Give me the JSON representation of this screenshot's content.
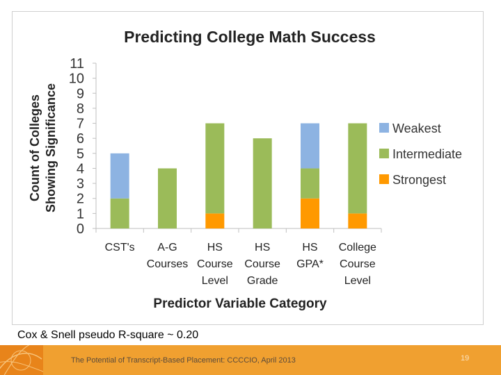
{
  "chart_data": {
    "type": "bar",
    "stacked": true,
    "title": "Predicting College Math Success",
    "xlabel": "Predictor Variable Category",
    "ylabel": [
      "Count of Colleges",
      "Showing Significance"
    ],
    "ylim": [
      0,
      11
    ],
    "yticks": [
      "0",
      "1",
      "2",
      "3",
      "4",
      "5",
      "6",
      "7",
      "8",
      "9",
      "10",
      "11"
    ],
    "grid": false,
    "legend_position": "right",
    "categories": [
      [
        "CST's"
      ],
      [
        "A-G",
        "Courses"
      ],
      [
        "HS",
        "Course",
        "Level"
      ],
      [
        "HS",
        "Course",
        "Grade"
      ],
      [
        "HS",
        "GPA*"
      ],
      [
        "College",
        "Course",
        "Level"
      ]
    ],
    "series": [
      {
        "name": "Strongest",
        "color": "#ff9900",
        "values": [
          0,
          0,
          1,
          0,
          2,
          1
        ]
      },
      {
        "name": "Intermediate",
        "color": "#9bbb59",
        "values": [
          2,
          4,
          6,
          6,
          2,
          6
        ]
      },
      {
        "name": "Weakest",
        "color": "#8db3e2",
        "values": [
          3,
          0,
          0,
          0,
          3,
          0
        ]
      }
    ],
    "legend_order": [
      "Weakest",
      "Intermediate",
      "Strongest"
    ]
  },
  "caption": "Cox & Snell pseudo R-square ~ 0.20",
  "footer": {
    "text": "The Potential of Transcript-Based Placement: CCCCIO, April 2013",
    "page_number": "19"
  },
  "colors": {
    "footer_bar": "#f0a030",
    "axis": "#bfbfbf"
  }
}
